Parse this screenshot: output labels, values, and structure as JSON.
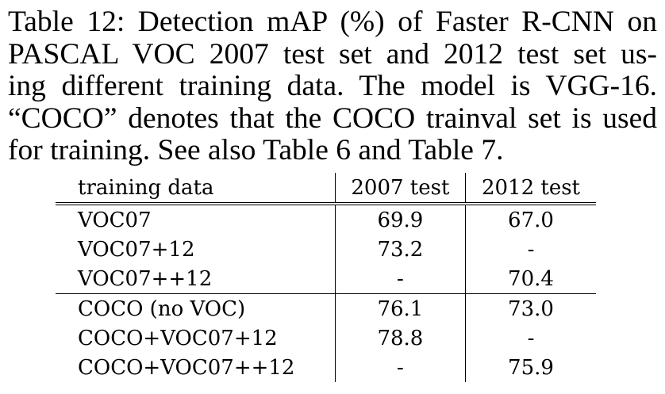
{
  "caption_lines": [
    "Table 12: Detection mAP (%) of Faster R-CNN on",
    "PASCAL VOC 2007 test set and 2012 test set us-",
    "ing different training data. The model is VGG-16.",
    "“COCO” denotes that the COCO trainval set is used",
    "for training. See also Table 6 and Table 7."
  ],
  "table": {
    "headers": [
      "training data",
      "2007 test",
      "2012 test"
    ],
    "rows": [
      {
        "name": "VOC07",
        "v2007": "69.9",
        "v2012": "67.0"
      },
      {
        "name": "VOC07+12",
        "v2007": "73.2",
        "v2012": "-"
      },
      {
        "name": "VOC07++12",
        "v2007": "-",
        "v2012": "70.4"
      },
      {
        "name": "COCO (no VOC)",
        "v2007": "76.1",
        "v2012": "73.0"
      },
      {
        "name": "COCO+VOC07+12",
        "v2007": "78.8",
        "v2012": "-"
      },
      {
        "name": "COCO+VOC07++12",
        "v2007": "-",
        "v2012": "75.9"
      }
    ]
  }
}
